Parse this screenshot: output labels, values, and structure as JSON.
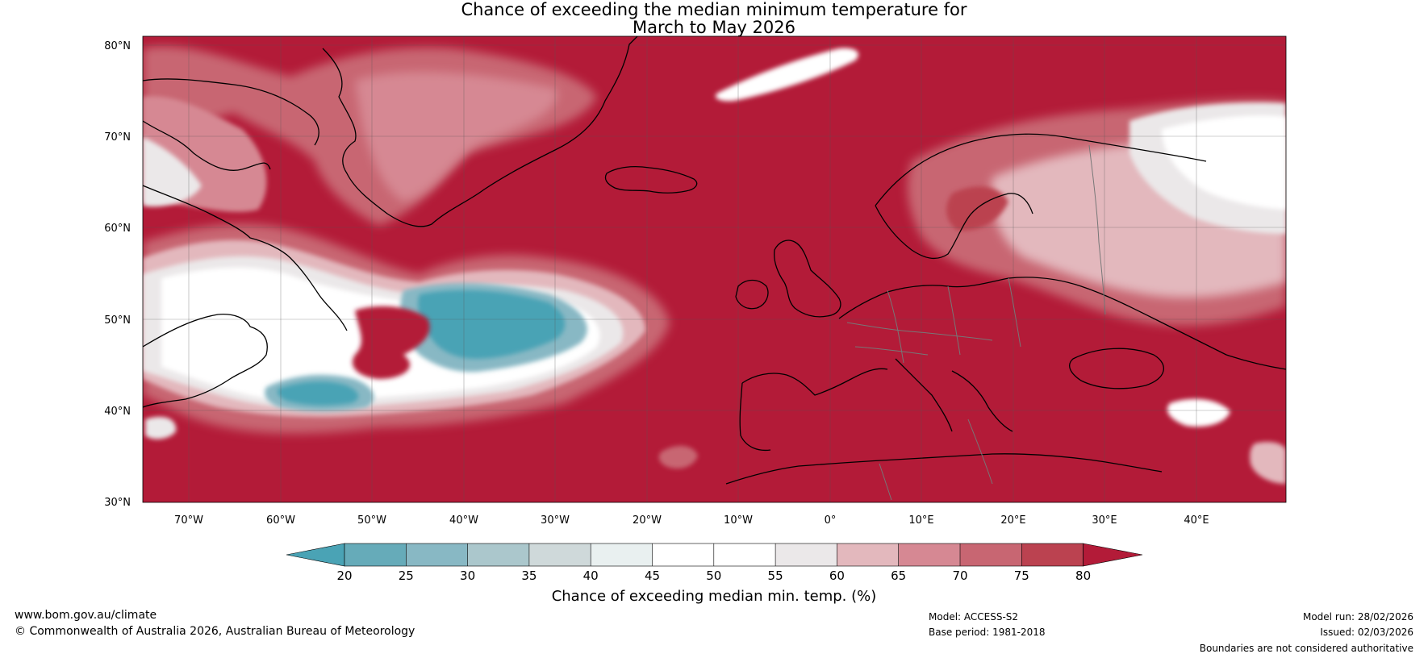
{
  "title": {
    "line1": "Chance of exceeding the median minimum temperature for",
    "line2": "March to May 2026"
  },
  "map": {
    "lat_labels": [
      "80°N",
      "70°N",
      "60°N",
      "50°N",
      "40°N",
      "30°N"
    ],
    "lon_labels": [
      "70°W",
      "60°W",
      "50°W",
      "40°W",
      "30°W",
      "20°W",
      "10°W",
      "0°",
      "10°E",
      "20°E",
      "30°E",
      "40°E"
    ]
  },
  "colorbar": {
    "ticks": [
      "20",
      "25",
      "30",
      "35",
      "40",
      "45",
      "50",
      "55",
      "60",
      "65",
      "70",
      "75",
      "80"
    ],
    "label": "Chance of exceeding median min. temp. (%)",
    "colors": {
      "under": "#4aa3b5",
      "bins": [
        "#66abb9",
        "#88b8c4",
        "#abc7cc",
        "#cfd9da",
        "#e9f0f0",
        "#ffffff",
        "#ffffff",
        "#ebe8e9",
        "#e3b8bd",
        "#d68893",
        "#c86672",
        "#bb4250"
      ],
      "over": "#b31b38"
    }
  },
  "footer": {
    "website": "www.bom.gov.au/climate",
    "copyright": "© Commonwealth of Australia 2026, Australian Bureau of Meteorology",
    "model": "Model: ACCESS-S2",
    "base_period": "Base period: 1981-2018",
    "model_run": "Model run: 28/02/2026",
    "issued": "Issued: 02/03/2026",
    "disclaimer": "Boundaries are not considered authoritative"
  }
}
